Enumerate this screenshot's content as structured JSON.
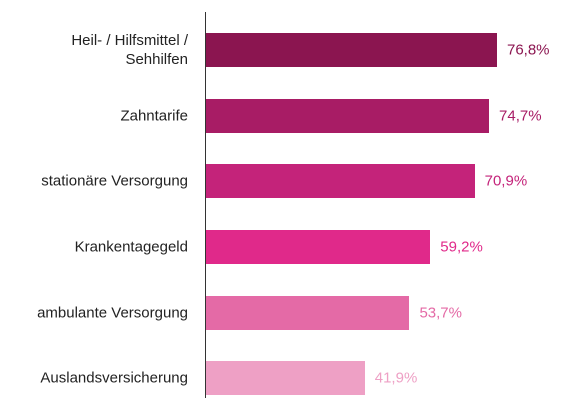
{
  "chart_data": {
    "type": "barh",
    "categories": [
      "Heil- / Hilfsmittel /\nSehhilfen",
      "Zahntarife",
      "stationäre Versorgung",
      "Krankentagegeld",
      "ambulante Versorgung",
      "Auslandsversicherung"
    ],
    "values": [
      76.8,
      74.7,
      70.9,
      59.2,
      53.7,
      41.9
    ],
    "value_labels": [
      "76,8%",
      "74,7%",
      "70,9%",
      "59,2%",
      "53,7%",
      "41,9%"
    ],
    "colors": [
      "#8b1550",
      "#a81c65",
      "#c4237a",
      "#e0298a",
      "#e46aa6",
      "#eea0c5"
    ],
    "xlim": [
      0,
      90
    ]
  }
}
